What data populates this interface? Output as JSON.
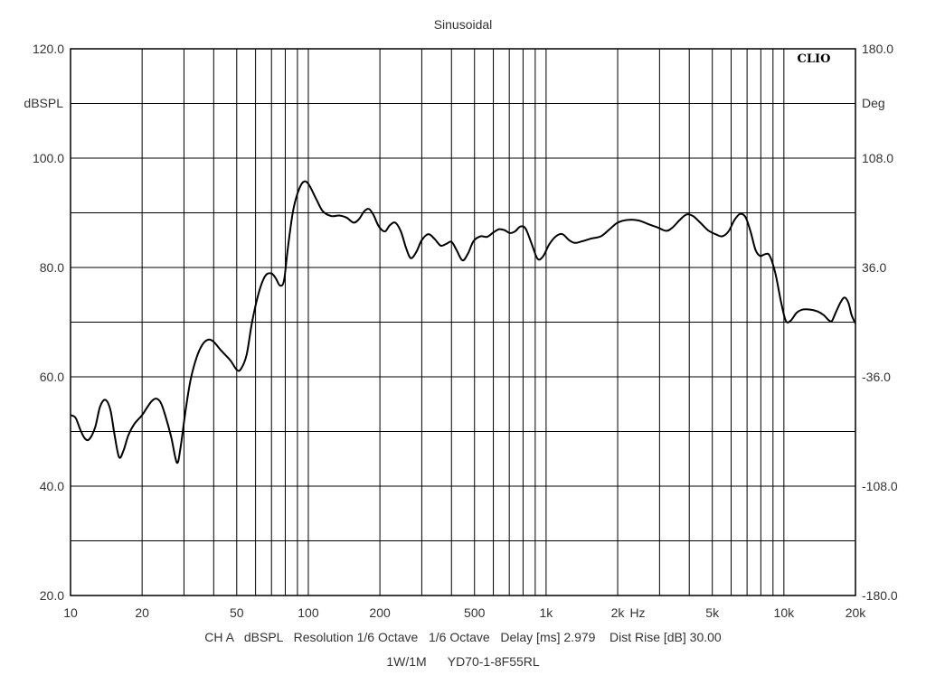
{
  "chart_data": {
    "type": "line",
    "title": "Sinusoidal",
    "badge": "CLIO",
    "left_axis_label": "dBSPL",
    "right_axis_label": "Deg",
    "x_unit_label": "Hz",
    "x_scale": "log",
    "xlim": [
      10,
      20000
    ],
    "ylim": [
      20,
      120
    ],
    "y2lim": [
      -180,
      180
    ],
    "y_ticks": [
      20,
      30,
      40,
      50,
      60,
      70,
      80,
      90,
      100,
      110,
      120
    ],
    "y_tick_labels": [
      {
        "value": 120,
        "text": "120.0"
      },
      {
        "value": 100,
        "text": "100.0"
      },
      {
        "value": 80,
        "text": "80.0"
      },
      {
        "value": 60,
        "text": "60.0"
      },
      {
        "value": 40,
        "text": "40.0"
      },
      {
        "value": 20,
        "text": "20.0"
      }
    ],
    "y2_tick_labels": [
      {
        "value": 180,
        "text": "180.0"
      },
      {
        "value": 108,
        "text": "108.0"
      },
      {
        "value": 36,
        "text": "36.0"
      },
      {
        "value": -36,
        "text": "-36.0"
      },
      {
        "value": -108,
        "text": "-108.0"
      },
      {
        "value": -180,
        "text": "-180.0"
      }
    ],
    "x_grid": [
      10,
      20,
      30,
      40,
      50,
      60,
      70,
      80,
      90,
      100,
      200,
      300,
      400,
      500,
      600,
      700,
      800,
      900,
      1000,
      2000,
      3000,
      4000,
      5000,
      6000,
      7000,
      8000,
      9000,
      10000,
      20000
    ],
    "x_tick_labels": [
      {
        "value": 10,
        "text": "10"
      },
      {
        "value": 20,
        "text": "20"
      },
      {
        "value": 50,
        "text": "50"
      },
      {
        "value": 100,
        "text": "100"
      },
      {
        "value": 200,
        "text": "200"
      },
      {
        "value": 500,
        "text": "500"
      },
      {
        "value": 1000,
        "text": "1k"
      },
      {
        "value": 2000,
        "text": "2k"
      },
      {
        "value": 5000,
        "text": "5k"
      },
      {
        "value": 10000,
        "text": "10k"
      },
      {
        "value": 20000,
        "text": "20k"
      }
    ],
    "grid": true,
    "series": [
      {
        "color": "#000000",
        "points": [
          [
            10,
            53
          ],
          [
            10.5,
            52.5
          ],
          [
            11,
            50.3
          ],
          [
            11.5,
            48.7
          ],
          [
            12,
            48.6
          ],
          [
            12.7,
            50.8
          ],
          [
            13.3,
            54.5
          ],
          [
            14,
            55.8
          ],
          [
            14.7,
            54
          ],
          [
            15.3,
            49.5
          ],
          [
            16,
            45.3
          ],
          [
            16.7,
            46.5
          ],
          [
            17.5,
            49.3
          ],
          [
            18.5,
            51.3
          ],
          [
            20,
            53
          ],
          [
            21,
            54.4
          ],
          [
            22,
            55.6
          ],
          [
            23,
            56
          ],
          [
            24,
            55.2
          ],
          [
            25,
            53
          ],
          [
            26.5,
            49
          ],
          [
            28,
            44.3
          ],
          [
            29,
            47
          ],
          [
            30.5,
            54
          ],
          [
            32,
            59.5
          ],
          [
            34,
            63.7
          ],
          [
            36,
            66
          ],
          [
            38,
            66.8
          ],
          [
            40,
            66.4
          ],
          [
            43,
            64.8
          ],
          [
            47,
            63
          ],
          [
            50,
            61.3
          ],
          [
            52,
            61.4
          ],
          [
            55,
            64
          ],
          [
            58,
            70
          ],
          [
            62,
            75.5
          ],
          [
            66,
            78.5
          ],
          [
            70,
            78.9
          ],
          [
            73,
            78
          ],
          [
            76,
            76.7
          ],
          [
            79,
            77.6
          ],
          [
            82,
            83.5
          ],
          [
            86,
            90
          ],
          [
            90,
            93.5
          ],
          [
            95,
            95.6
          ],
          [
            100,
            95.3
          ],
          [
            108,
            92.5
          ],
          [
            115,
            90.3
          ],
          [
            125,
            89.4
          ],
          [
            135,
            89.5
          ],
          [
            145,
            89.1
          ],
          [
            155,
            88.2
          ],
          [
            163,
            88.8
          ],
          [
            172,
            90.3
          ],
          [
            180,
            90.7
          ],
          [
            188,
            89.6
          ],
          [
            198,
            87.5
          ],
          [
            210,
            86.6
          ],
          [
            220,
            87.7
          ],
          [
            232,
            88.2
          ],
          [
            245,
            86.6
          ],
          [
            258,
            83.5
          ],
          [
            270,
            81.7
          ],
          [
            285,
            82.9
          ],
          [
            300,
            85
          ],
          [
            320,
            86.1
          ],
          [
            340,
            85.2
          ],
          [
            360,
            84
          ],
          [
            380,
            84.3
          ],
          [
            400,
            84.7
          ],
          [
            420,
            83.2
          ],
          [
            445,
            81.3
          ],
          [
            470,
            82.6
          ],
          [
            495,
            84.8
          ],
          [
            530,
            85.7
          ],
          [
            565,
            85.6
          ],
          [
            600,
            86.4
          ],
          [
            635,
            87
          ],
          [
            670,
            86.8
          ],
          [
            705,
            86.3
          ],
          [
            740,
            86.6
          ],
          [
            780,
            87.5
          ],
          [
            820,
            87.1
          ],
          [
            870,
            84.3
          ],
          [
            920,
            81.6
          ],
          [
            970,
            82
          ],
          [
            1030,
            84.2
          ],
          [
            1100,
            85.7
          ],
          [
            1170,
            86.1
          ],
          [
            1250,
            85
          ],
          [
            1320,
            84.5
          ],
          [
            1420,
            84.8
          ],
          [
            1550,
            85.3
          ],
          [
            1700,
            85.7
          ],
          [
            1850,
            87
          ],
          [
            2000,
            88.2
          ],
          [
            2200,
            88.7
          ],
          [
            2450,
            88.6
          ],
          [
            2700,
            87.9
          ],
          [
            2950,
            87.3
          ],
          [
            3200,
            86.7
          ],
          [
            3400,
            87.3
          ],
          [
            3650,
            88.7
          ],
          [
            3900,
            89.7
          ],
          [
            4150,
            89.4
          ],
          [
            4450,
            88.2
          ],
          [
            4800,
            86.8
          ],
          [
            5150,
            86.1
          ],
          [
            5500,
            85.7
          ],
          [
            5850,
            86.6
          ],
          [
            6200,
            88.7
          ],
          [
            6550,
            89.8
          ],
          [
            6900,
            89.2
          ],
          [
            7250,
            86.5
          ],
          [
            7600,
            83.2
          ],
          [
            7950,
            82.1
          ],
          [
            8300,
            82.4
          ],
          [
            8700,
            82.2
          ],
          [
            9200,
            79
          ],
          [
            9750,
            73.5
          ],
          [
            10200,
            70.2
          ],
          [
            10700,
            70.3
          ],
          [
            11300,
            71.7
          ],
          [
            12000,
            72.3
          ],
          [
            12900,
            72.3
          ],
          [
            13800,
            72
          ],
          [
            14700,
            71.3
          ],
          [
            15400,
            70.4
          ],
          [
            15900,
            70.2
          ],
          [
            16500,
            71.7
          ],
          [
            17300,
            73.6
          ],
          [
            18000,
            74.5
          ],
          [
            18700,
            73.5
          ],
          [
            19200,
            71.5
          ],
          [
            19700,
            70.3
          ],
          [
            20000,
            69.8
          ]
        ]
      }
    ]
  },
  "footer": {
    "line1": "CH A   dBSPL   Resolution 1/6 Octave   1/6 Octave   Delay [ms] 2.979    Dist Rise [dB] 30.00",
    "line2": "1W/1M      YD70-1-8F55RL"
  }
}
